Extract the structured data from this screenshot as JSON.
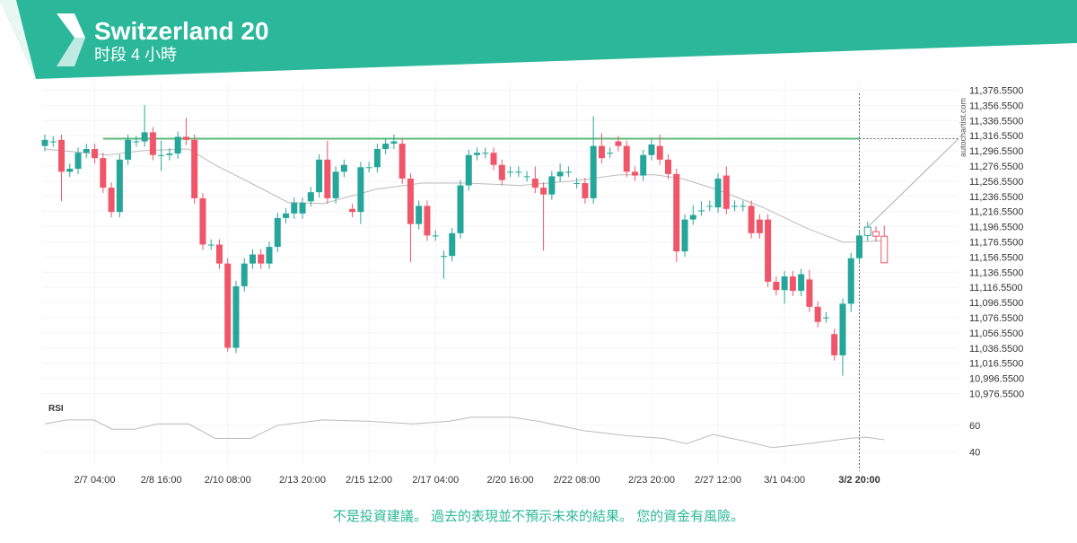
{
  "header": {
    "title": "Switzerland 20",
    "subtitle": "时段 4 小時",
    "watermark": "autochartist.com"
  },
  "footer": {
    "disclaimer": "不是投資建議。 過去的表現並不預示未來的結果。 您的資金有風險。"
  },
  "chart_data": {
    "type": "candlestick",
    "up_color": "#26a69a",
    "down_color": "#f0566a",
    "line_color": "#bbbbbb",
    "level_color": "#5cb97a",
    "categories": [
      null,
      null,
      null,
      null,
      null,
      null,
      "2/7 04:00",
      null,
      null,
      null,
      null,
      null,
      null,
      null,
      "2/8 16:00",
      null,
      null,
      null,
      null,
      null,
      null,
      null,
      "2/10 08:00",
      null,
      null,
      null,
      null,
      null,
      null,
      null,
      null,
      "2/13 20:00",
      null,
      null,
      null,
      null,
      null,
      null,
      null,
      "2/15 12:00",
      null,
      null,
      null,
      null,
      null,
      null,
      null,
      "2/17 04:00",
      null,
      null,
      null,
      null,
      null,
      null,
      null,
      null,
      "2/20 16:00",
      null,
      null,
      null,
      null,
      null,
      null,
      null,
      "2/22 08:00",
      null,
      null,
      null,
      null,
      null,
      null,
      null,
      null,
      "2/23 20:00",
      null,
      null,
      null,
      null,
      null,
      null,
      null,
      "2/27 12:00",
      null,
      null,
      null,
      null,
      null,
      null,
      null,
      "3/1 04:00",
      null,
      null,
      null,
      null,
      null,
      null,
      null,
      null,
      "3/2 20:00",
      null,
      null,
      null
    ],
    "candles": [
      {
        "o": 11303,
        "h": 11318,
        "l": 11296,
        "c": 11311
      },
      {
        "o": 11309,
        "h": 11316,
        "l": 11302,
        "c": 11309
      },
      {
        "o": 11311,
        "h": 11318,
        "l": 11230,
        "c": 11269
      },
      {
        "o": 11269,
        "h": 11280,
        "l": 11262,
        "c": 11273
      },
      {
        "o": 11273,
        "h": 11301,
        "l": 11266,
        "c": 11294
      },
      {
        "o": 11294,
        "h": 11306,
        "l": 11287,
        "c": 11299
      },
      {
        "o": 11299,
        "h": 11306,
        "l": 11280,
        "c": 11287
      },
      {
        "o": 11287,
        "h": 11294,
        "l": 11241,
        "c": 11248
      },
      {
        "o": 11248,
        "h": 11255,
        "l": 11209,
        "c": 11216
      },
      {
        "o": 11216,
        "h": 11292,
        "l": 11209,
        "c": 11285
      },
      {
        "o": 11285,
        "h": 11318,
        "l": 11278,
        "c": 11311
      },
      {
        "o": 11309,
        "h": 11316,
        "l": 11302,
        "c": 11309
      },
      {
        "o": 11309,
        "h": 11357,
        "l": 11302,
        "c": 11321
      },
      {
        "o": 11321,
        "h": 11328,
        "l": 11284,
        "c": 11291
      },
      {
        "o": 11291,
        "h": 11310,
        "l": 11270,
        "c": 11291
      },
      {
        "o": 11291,
        "h": 11300,
        "l": 11284,
        "c": 11293
      },
      {
        "o": 11293,
        "h": 11322,
        "l": 11286,
        "c": 11315
      },
      {
        "o": 11315,
        "h": 11340,
        "l": 11304,
        "c": 11311
      },
      {
        "o": 11311,
        "h": 11318,
        "l": 11227,
        "c": 11234
      },
      {
        "o": 11234,
        "h": 11241,
        "l": 11166,
        "c": 11173
      },
      {
        "o": 11173,
        "h": 11180,
        "l": 11166,
        "c": 11173
      },
      {
        "o": 11173,
        "h": 11180,
        "l": 11141,
        "c": 11148
      },
      {
        "o": 11148,
        "h": 11155,
        "l": 11032,
        "c": 11037
      },
      {
        "o": 11037,
        "h": 11125,
        "l": 11030,
        "c": 11118
      },
      {
        "o": 11118,
        "h": 11155,
        "l": 11111,
        "c": 11148
      },
      {
        "o": 11148,
        "h": 11167,
        "l": 11141,
        "c": 11160
      },
      {
        "o": 11160,
        "h": 11167,
        "l": 11141,
        "c": 11148
      },
      {
        "o": 11148,
        "h": 11177,
        "l": 11141,
        "c": 11170
      },
      {
        "o": 11170,
        "h": 11215,
        "l": 11163,
        "c": 11208
      },
      {
        "o": 11208,
        "h": 11221,
        "l": 11201,
        "c": 11214
      },
      {
        "o": 11214,
        "h": 11235,
        "l": 11207,
        "c": 11228
      },
      {
        "o": 11214,
        "h": 11235,
        "l": 11207,
        "c": 11228
      },
      {
        "o": 11230,
        "h": 11249,
        "l": 11223,
        "c": 11242
      },
      {
        "o": 11242,
        "h": 11292,
        "l": 11235,
        "c": 11285
      },
      {
        "o": 11285,
        "h": 11310,
        "l": 11227,
        "c": 11234
      },
      {
        "o": 11234,
        "h": 11276,
        "l": 11227,
        "c": 11269
      },
      {
        "o": 11269,
        "h": 11285,
        "l": 11262,
        "c": 11278
      },
      {
        "o": 11220,
        "h": 11227,
        "l": 11209,
        "c": 11216
      },
      {
        "o": 11216,
        "h": 11282,
        "l": 11200,
        "c": 11275
      },
      {
        "o": 11275,
        "h": 11282,
        "l": 11268,
        "c": 11275
      },
      {
        "o": 11275,
        "h": 11306,
        "l": 11268,
        "c": 11299
      },
      {
        "o": 11299,
        "h": 11313,
        "l": 11292,
        "c": 11306
      },
      {
        "o": 11306,
        "h": 11318,
        "l": 11299,
        "c": 11309
      },
      {
        "o": 11306,
        "h": 11313,
        "l": 11253,
        "c": 11260
      },
      {
        "o": 11260,
        "h": 11267,
        "l": 11150,
        "c": 11200
      },
      {
        "o": 11200,
        "h": 11231,
        "l": 11193,
        "c": 11224
      },
      {
        "o": 11224,
        "h": 11231,
        "l": 11178,
        "c": 11185
      },
      {
        "o": 11185,
        "h": 11192,
        "l": 11178,
        "c": 11185
      },
      {
        "o": 11158,
        "h": 11165,
        "l": 11128,
        "c": 11158
      },
      {
        "o": 11158,
        "h": 11195,
        "l": 11151,
        "c": 11188
      },
      {
        "o": 11188,
        "h": 11258,
        "l": 11181,
        "c": 11251
      },
      {
        "o": 11251,
        "h": 11298,
        "l": 11244,
        "c": 11291
      },
      {
        "o": 11291,
        "h": 11301,
        "l": 11284,
        "c": 11294
      },
      {
        "o": 11294,
        "h": 11301,
        "l": 11287,
        "c": 11294
      },
      {
        "o": 11294,
        "h": 11301,
        "l": 11271,
        "c": 11278
      },
      {
        "o": 11278,
        "h": 11285,
        "l": 11251,
        "c": 11258
      },
      {
        "o": 11269,
        "h": 11276,
        "l": 11262,
        "c": 11269
      },
      {
        "o": 11269,
        "h": 11276,
        "l": 11262,
        "c": 11269
      },
      {
        "o": 11263,
        "h": 11270,
        "l": 11256,
        "c": 11263
      },
      {
        "o": 11260,
        "h": 11276,
        "l": 11241,
        "c": 11248
      },
      {
        "o": 11248,
        "h": 11255,
        "l": 11165,
        "c": 11239
      },
      {
        "o": 11239,
        "h": 11270,
        "l": 11232,
        "c": 11263
      },
      {
        "o": 11263,
        "h": 11280,
        "l": 11256,
        "c": 11269
      },
      {
        "o": 11269,
        "h": 11276,
        "l": 11262,
        "c": 11269
      },
      {
        "o": 11254,
        "h": 11261,
        "l": 11247,
        "c": 11254
      },
      {
        "o": 11254,
        "h": 11261,
        "l": 11227,
        "c": 11234
      },
      {
        "o": 11234,
        "h": 11342,
        "l": 11227,
        "c": 11303
      },
      {
        "o": 11303,
        "h": 11320,
        "l": 11280,
        "c": 11287
      },
      {
        "o": 11294,
        "h": 11301,
        "l": 11287,
        "c": 11294
      },
      {
        "o": 11309,
        "h": 11316,
        "l": 11296,
        "c": 11303
      },
      {
        "o": 11303,
        "h": 11310,
        "l": 11262,
        "c": 11269
      },
      {
        "o": 11269,
        "h": 11276,
        "l": 11257,
        "c": 11264
      },
      {
        "o": 11264,
        "h": 11298,
        "l": 11257,
        "c": 11291
      },
      {
        "o": 11291,
        "h": 11312,
        "l": 11284,
        "c": 11305
      },
      {
        "o": 11303,
        "h": 11318,
        "l": 11278,
        "c": 11285
      },
      {
        "o": 11285,
        "h": 11292,
        "l": 11259,
        "c": 11266
      },
      {
        "o": 11266,
        "h": 11273,
        "l": 11150,
        "c": 11164
      },
      {
        "o": 11164,
        "h": 11213,
        "l": 11157,
        "c": 11206
      },
      {
        "o": 11206,
        "h": 11225,
        "l": 11199,
        "c": 11212
      },
      {
        "o": 11218,
        "h": 11230,
        "l": 11211,
        "c": 11218
      },
      {
        "o": 11224,
        "h": 11231,
        "l": 11217,
        "c": 11224
      },
      {
        "o": 11222,
        "h": 11267,
        "l": 11215,
        "c": 11260
      },
      {
        "o": 11264,
        "h": 11276,
        "l": 11213,
        "c": 11220
      },
      {
        "o": 11224,
        "h": 11231,
        "l": 11217,
        "c": 11224
      },
      {
        "o": 11224,
        "h": 11231,
        "l": 11217,
        "c": 11224
      },
      {
        "o": 11224,
        "h": 11231,
        "l": 11181,
        "c": 11188
      },
      {
        "o": 11206,
        "h": 11213,
        "l": 11181,
        "c": 11188
      },
      {
        "o": 11206,
        "h": 11213,
        "l": 11117,
        "c": 11124
      },
      {
        "o": 11124,
        "h": 11131,
        "l": 11106,
        "c": 11113
      },
      {
        "o": 11113,
        "h": 11138,
        "l": 11095,
        "c": 11131
      },
      {
        "o": 11131,
        "h": 11138,
        "l": 11105,
        "c": 11112
      },
      {
        "o": 11112,
        "h": 11141,
        "l": 11105,
        "c": 11134
      },
      {
        "o": 11127,
        "h": 11140,
        "l": 11084,
        "c": 11091
      },
      {
        "o": 11091,
        "h": 11098,
        "l": 11064,
        "c": 11071
      },
      {
        "o": 11077,
        "h": 11084,
        "l": 11070,
        "c": 11077
      },
      {
        "o": 11055,
        "h": 11062,
        "l": 11020,
        "c": 11027
      },
      {
        "o": 11027,
        "h": 11102,
        "l": 11000,
        "c": 11095
      },
      {
        "o": 11095,
        "h": 11162,
        "l": 11084,
        "c": 11155
      },
      {
        "o": 11155,
        "h": 11192,
        "l": 11148,
        "c": 11185
      },
      {
        "o": 11185,
        "h": 11203,
        "l": 11178,
        "c": 11196
      },
      {
        "o": 11190,
        "h": 11197,
        "l": 11177,
        "c": 11184
      },
      {
        "o": 11184,
        "h": 11198,
        "l": 11149,
        "c": 11149
      }
    ],
    "resistance": 11312.55,
    "ma": {
      "x": [
        0,
        7.5,
        11.9,
        17.3,
        20.5,
        24.8,
        29.2,
        33.5,
        39.9,
        45.4,
        50.8,
        57.2,
        63.7,
        69.1,
        73.4,
        76.7,
        81,
        86.4,
        91.8,
        96.1,
        101
      ],
      "values": [
        11299,
        11291,
        11297,
        11299,
        11278,
        11254,
        11229,
        11227,
        11246,
        11254,
        11254,
        11251,
        11257,
        11265,
        11265,
        11260,
        11245,
        11222,
        11194,
        11176,
        11178
      ]
    },
    "ylim": [
      10966.55,
      11386.55
    ],
    "yticks": [
      {
        "value": 11376.55,
        "label": "11,376.5500"
      },
      {
        "value": 11356.55,
        "label": "11,356.5500"
      },
      {
        "value": 11336.55,
        "label": "11,336.5500"
      },
      {
        "value": 11316.55,
        "label": "11,316.5500"
      },
      {
        "value": 11296.55,
        "label": "11,296.5500"
      },
      {
        "value": 11276.55,
        "label": "11,276.5500"
      },
      {
        "value": 11256.55,
        "label": "11,256.5500"
      },
      {
        "value": 11236.55,
        "label": "11,236.5500"
      },
      {
        "value": 11216.55,
        "label": "11,216.5500"
      },
      {
        "value": 11196.55,
        "label": "11,196.5500"
      },
      {
        "value": 11176.55,
        "label": "11,176.5500"
      },
      {
        "value": 11156.55,
        "label": "11,156.5500"
      },
      {
        "value": 11136.55,
        "label": "11,136.5500"
      },
      {
        "value": 11116.55,
        "label": "11,116.5500"
      },
      {
        "value": 11096.55,
        "label": "11,096.5500"
      },
      {
        "value": 11076.55,
        "label": "11,076.5500"
      },
      {
        "value": 11056.55,
        "label": "11,056.5500"
      },
      {
        "value": 11036.55,
        "label": "11,036.5500"
      },
      {
        "value": 11016.55,
        "label": "11,016.5500"
      },
      {
        "value": 10996.55,
        "label": "10,996.5500"
      },
      {
        "value": 10976.55,
        "label": "10,976.5500"
      }
    ],
    "rsi": {
      "label": "RSI",
      "x": [
        0,
        2.7,
        5.9,
        8.1,
        10.8,
        13.5,
        17.3,
        20.5,
        24.8,
        28,
        33.5,
        38.9,
        44.3,
        48.6,
        51.3,
        56.2,
        59.4,
        64.8,
        70.2,
        74.5,
        77.2,
        80.4,
        84.2,
        87.5,
        91.8,
        96.7,
        98.8,
        101
      ],
      "values": [
        61,
        64,
        64,
        57,
        57,
        61,
        61,
        50,
        50,
        60,
        64,
        63,
        61,
        63,
        66,
        66,
        63,
        56,
        52,
        50,
        46,
        53,
        48,
        43,
        46,
        50,
        51,
        49
      ],
      "ylim": [
        30,
        68
      ],
      "yticks": [
        60,
        40
      ]
    }
  }
}
